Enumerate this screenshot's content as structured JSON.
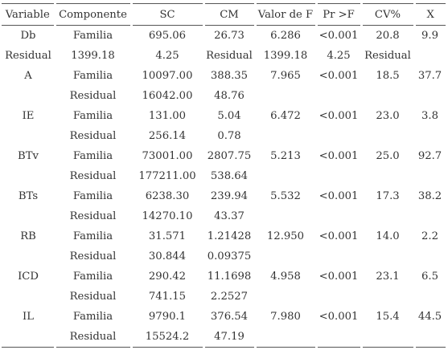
{
  "headers": [
    "Variable",
    "Componente",
    "SC",
    "CM",
    "Valor de F",
    "Pr >F",
    "CV%",
    "X"
  ],
  "rows": [
    [
      "Db",
      "Familia",
      "695.06",
      "26.73",
      "6.286",
      "<0.001",
      "20.8",
      "9.9"
    ],
    [
      "Residual",
      "1399.18",
      "4.25",
      "Residual",
      "1399.18",
      "4.25",
      "Residual",
      ""
    ],
    [
      "A",
      "Familia",
      "10097.00",
      "388.35",
      "7.965",
      "<0.001",
      "18.5",
      "37.7"
    ],
    [
      "",
      "Residual",
      "16042.00",
      "48.76",
      "",
      "",
      "",
      ""
    ],
    [
      "IE",
      "Familia",
      "131.00",
      "5.04",
      "6.472",
      "<0.001",
      "23.0",
      "3.8"
    ],
    [
      "",
      "Residual",
      "256.14",
      "0.78",
      "",
      "",
      "",
      ""
    ],
    [
      "BTv",
      "Familia",
      "73001.00",
      "2807.75",
      "5.213",
      "<0.001",
      "25.0",
      "92.7"
    ],
    [
      "",
      "Residual",
      "177211.00",
      "538.64",
      "",
      "",
      "",
      ""
    ],
    [
      "BTs",
      "Familia",
      "6238.30",
      "239.94",
      "5.532",
      "<0.001",
      "17.3",
      "38.2"
    ],
    [
      "",
      "Residual",
      "14270.10",
      "43.37",
      "",
      "",
      "",
      ""
    ],
    [
      "RB",
      "Familia",
      "31.571",
      "1.21428",
      "12.950",
      "<0.001",
      "14.0",
      "2.2"
    ],
    [
      "",
      "Residual",
      "30.844",
      "0.09375",
      "",
      "",
      "",
      ""
    ],
    [
      "ICD",
      "Familia",
      "290.42",
      "11.1698",
      "4.958",
      "<0.001",
      "23.1",
      "6.5"
    ],
    [
      "",
      "Residual",
      "741.15",
      "2.2527",
      "",
      "",
      "",
      ""
    ],
    [
      "IL",
      "Familia",
      "9790.1",
      "376.54",
      "7.980",
      "<0.001",
      "15.4",
      "44.5"
    ],
    [
      "",
      "Residual",
      "15524.2",
      "47.19",
      "",
      "",
      "",
      ""
    ]
  ]
}
